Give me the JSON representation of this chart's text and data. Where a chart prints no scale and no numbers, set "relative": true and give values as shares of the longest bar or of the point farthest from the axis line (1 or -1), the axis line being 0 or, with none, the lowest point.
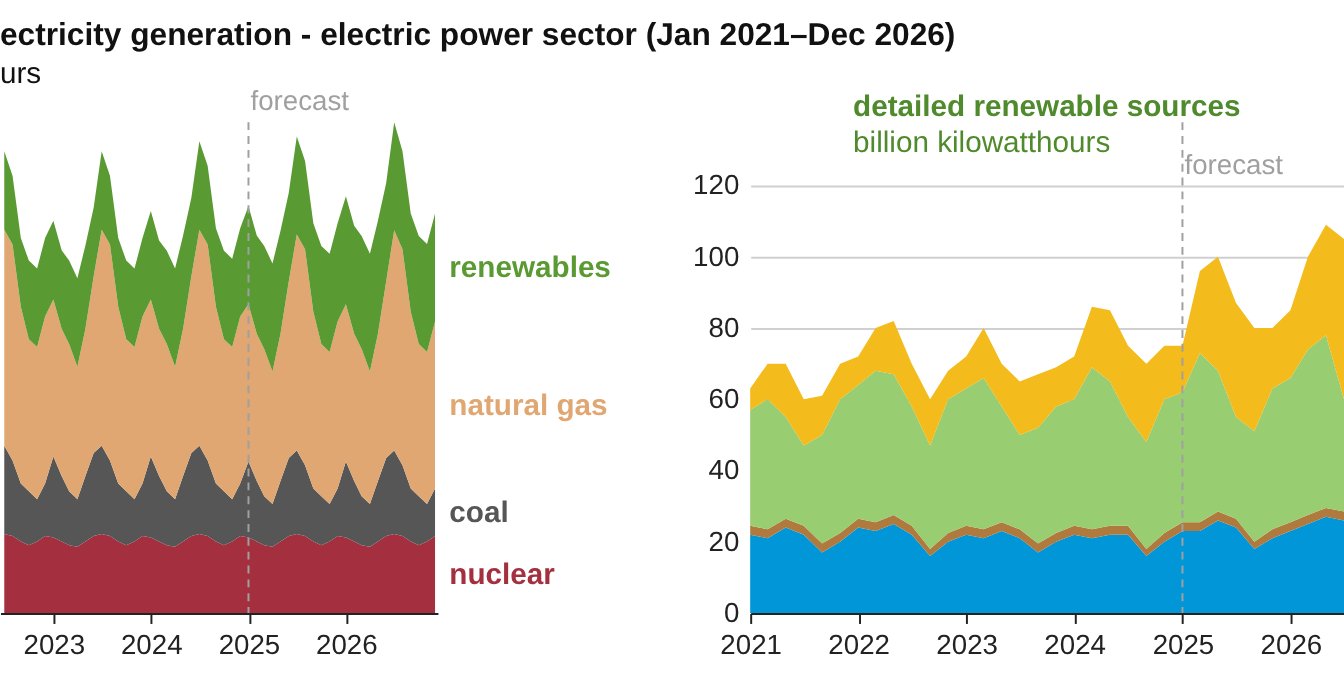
{
  "chart_data": [
    {
      "type": "area",
      "title": "ectricity generation - electric power sector (Jan 2021–Dec 2026)",
      "subtitle": "urs",
      "stacked": true,
      "relative": true,
      "legend": false,
      "grid": false,
      "x": [
        "2022-07",
        "2022-08",
        "2022-09",
        "2022-10",
        "2022-11",
        "2022-12",
        "2023-01",
        "2023-02",
        "2023-03",
        "2023-04",
        "2023-05",
        "2023-06",
        "2023-07",
        "2023-08",
        "2023-09",
        "2023-10",
        "2023-11",
        "2023-12",
        "2024-01",
        "2024-02",
        "2024-03",
        "2024-04",
        "2024-05",
        "2024-06",
        "2024-07",
        "2024-08",
        "2024-09",
        "2024-10",
        "2024-11",
        "2024-12",
        "2025-01",
        "2025-02",
        "2025-03",
        "2025-04",
        "2025-05",
        "2025-06",
        "2025-07",
        "2025-08",
        "2025-09",
        "2025-10",
        "2025-11",
        "2025-12",
        "2026-01",
        "2026-02",
        "2026-03",
        "2026-04",
        "2026-05",
        "2026-06",
        "2026-07",
        "2026-08",
        "2026-09",
        "2026-10",
        "2026-11",
        "2026-12"
      ],
      "series": [
        {
          "name": "nuclear",
          "color": "#a4303f",
          "values": [
            0.161,
            0.157,
            0.146,
            0.138,
            0.146,
            0.157,
            0.154,
            0.146,
            0.138,
            0.135,
            0.146,
            0.157,
            0.161,
            0.157,
            0.146,
            0.138,
            0.146,
            0.157,
            0.154,
            0.146,
            0.138,
            0.135,
            0.146,
            0.157,
            0.161,
            0.157,
            0.146,
            0.138,
            0.146,
            0.157,
            0.154,
            0.146,
            0.138,
            0.135,
            0.146,
            0.157,
            0.161,
            0.157,
            0.146,
            0.138,
            0.146,
            0.157,
            0.154,
            0.146,
            0.138,
            0.135,
            0.146,
            0.157,
            0.161,
            0.157,
            0.146,
            0.138,
            0.146,
            0.157
          ]
        },
        {
          "name": "coal",
          "color": "#565656",
          "values": [
            0.18,
            0.154,
            0.118,
            0.11,
            0.086,
            0.107,
            0.165,
            0.133,
            0.11,
            0.097,
            0.133,
            0.169,
            0.18,
            0.154,
            0.118,
            0.11,
            0.086,
            0.107,
            0.165,
            0.133,
            0.11,
            0.097,
            0.133,
            0.169,
            0.18,
            0.154,
            0.118,
            0.11,
            0.086,
            0.107,
            0.155,
            0.123,
            0.1,
            0.087,
            0.123,
            0.159,
            0.17,
            0.144,
            0.108,
            0.1,
            0.076,
            0.097,
            0.155,
            0.123,
            0.1,
            0.087,
            0.123,
            0.159,
            0.17,
            0.144,
            0.108,
            0.1,
            0.076,
            0.097
          ]
        },
        {
          "name": "natural gas",
          "color": "#e0a772",
          "values": [
            0.44,
            0.44,
            0.36,
            0.31,
            0.31,
            0.34,
            0.32,
            0.3,
            0.3,
            0.27,
            0.3,
            0.36,
            0.44,
            0.44,
            0.36,
            0.31,
            0.31,
            0.34,
            0.32,
            0.3,
            0.3,
            0.27,
            0.3,
            0.36,
            0.44,
            0.44,
            0.36,
            0.31,
            0.31,
            0.34,
            0.32,
            0.3,
            0.3,
            0.27,
            0.3,
            0.36,
            0.44,
            0.44,
            0.36,
            0.31,
            0.31,
            0.34,
            0.32,
            0.3,
            0.3,
            0.27,
            0.3,
            0.36,
            0.449,
            0.44,
            0.36,
            0.31,
            0.31,
            0.34
          ]
        },
        {
          "name": "renewables",
          "color": "#5a9a32",
          "values": [
            0.16,
            0.14,
            0.14,
            0.16,
            0.16,
            0.16,
            0.16,
            0.16,
            0.17,
            0.18,
            0.17,
            0.14,
            0.16,
            0.14,
            0.14,
            0.16,
            0.16,
            0.16,
            0.18,
            0.18,
            0.19,
            0.2,
            0.19,
            0.16,
            0.18,
            0.16,
            0.16,
            0.18,
            0.18,
            0.18,
            0.2,
            0.2,
            0.21,
            0.22,
            0.21,
            0.18,
            0.2,
            0.18,
            0.18,
            0.2,
            0.2,
            0.2,
            0.22,
            0.22,
            0.23,
            0.24,
            0.23,
            0.2,
            0.22,
            0.2,
            0.2,
            0.22,
            0.22,
            0.22
          ]
        }
      ],
      "xlim": [
        "2022-06-15",
        "2026-12-10"
      ],
      "xticks": [
        "2023",
        "2024",
        "2025",
        "2026"
      ],
      "ref_lines": [
        {
          "axis": "x",
          "value": "2025",
          "label": "forecast",
          "color": "#a0a0a0",
          "line_style": "dashed"
        }
      ]
    },
    {
      "type": "area",
      "title": "detailed renewable sources",
      "subtitle": "billion kilowatthours",
      "stacked": true,
      "legend": false,
      "grid": "y",
      "x": [
        "2021-01",
        "2021-03",
        "2021-05",
        "2021-07",
        "2021-09",
        "2021-11",
        "2022-01",
        "2022-03",
        "2022-05",
        "2022-07",
        "2022-09",
        "2022-11",
        "2023-01",
        "2023-03",
        "2023-05",
        "2023-07",
        "2023-09",
        "2023-11",
        "2024-01",
        "2024-03",
        "2024-05",
        "2024-07",
        "2024-09",
        "2024-11",
        "2025-01",
        "2025-03",
        "2025-05",
        "2025-07",
        "2025-09",
        "2025-11",
        "2026-01",
        "2026-03",
        "2026-05",
        "2026-07"
      ],
      "series": [
        {
          "color": "#0096d7",
          "values": [
            22,
            21,
            24,
            22,
            17,
            20,
            24,
            23,
            25,
            22,
            16,
            20,
            22,
            21,
            23,
            21,
            17,
            20,
            22,
            21,
            22,
            22,
            16,
            20,
            23,
            23,
            26,
            24,
            18,
            21,
            23,
            25,
            27,
            26
          ]
        },
        {
          "color": "#b07a3e",
          "values": [
            2.5,
            2.5,
            2.5,
            2.5,
            2.5,
            2.5,
            2.5,
            2.5,
            2.5,
            2.5,
            2,
            2.5,
            2.5,
            2.5,
            2.5,
            2.5,
            2.5,
            2.5,
            2.5,
            2.5,
            2.5,
            2.5,
            2,
            2.5,
            2.5,
            2.5,
            2.5,
            2.5,
            2,
            2.5,
            2.5,
            2.5,
            2.5,
            2.5
          ]
        },
        {
          "color": "#98cd72",
          "values": [
            32.5,
            36.5,
            28.5,
            22.5,
            30.5,
            37.5,
            37.5,
            42.5,
            39.5,
            33.5,
            29,
            37.5,
            38.5,
            42.5,
            32.5,
            26.5,
            32.5,
            35.5,
            35.5,
            45.5,
            40.5,
            30.5,
            30,
            37.5,
            36.5,
            47.5,
            39.5,
            28.5,
            31,
            39.5,
            40.5,
            46.5,
            48.5,
            31.5
          ]
        },
        {
          "color": "#f3bb1c",
          "values": [
            6,
            10,
            15,
            13,
            11,
            10,
            8,
            12,
            15,
            12,
            13,
            8,
            9,
            14,
            12,
            15,
            15,
            11,
            12,
            17,
            20,
            20,
            22,
            15,
            13,
            23,
            32,
            32,
            29,
            17,
            19,
            26,
            31,
            45
          ]
        }
      ],
      "xlim": [
        "2021-01",
        "2026-07"
      ],
      "xticks": [
        "2021",
        "2022",
        "2023",
        "2024",
        "2025",
        "2026"
      ],
      "ylim": [
        0,
        120
      ],
      "yticks": [
        0,
        20,
        40,
        60,
        80,
        100,
        120
      ],
      "ref_lines": [
        {
          "axis": "x",
          "value": "2025",
          "label": "forecast",
          "color": "#a0a0a0",
          "line_style": "dashed"
        }
      ]
    }
  ]
}
